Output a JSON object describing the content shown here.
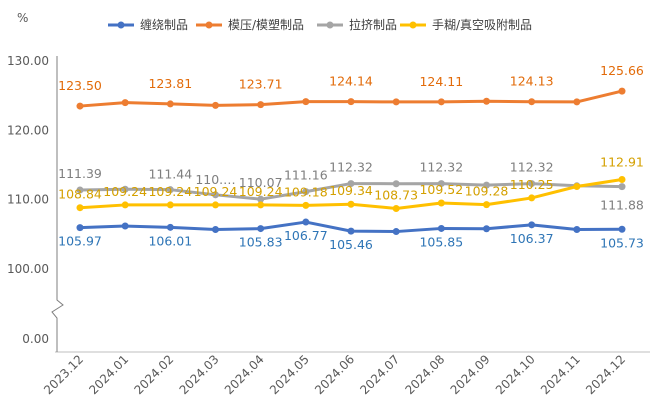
{
  "chart_data": {
    "type": "line",
    "y_unit": "%",
    "x": [
      "2023.12",
      "2024.01",
      "2024.02",
      "2024.03",
      "2024.04",
      "2024.05",
      "2024.06",
      "2024.07",
      "2024.08",
      "2024.09",
      "2024.10",
      "2024.11",
      "2024.12"
    ],
    "y_ticks": [
      "130.00",
      "120.00",
      "110.00",
      "100.00",
      "0.00"
    ],
    "ylim_upper_segment": [
      100,
      130
    ],
    "axis_break": true,
    "legend_position": "top",
    "grid": false,
    "series": [
      {
        "name": "缠绕制品",
        "color": "#4472C4",
        "label_color": "#2E75B6",
        "values": [
          105.97,
          106.2,
          106.01,
          105.7,
          105.83,
          106.77,
          105.46,
          105.4,
          105.85,
          105.8,
          106.37,
          105.7,
          105.73
        ],
        "labels": [
          "105.97",
          null,
          "106.01",
          null,
          "105.83",
          "106.77",
          "105.46",
          null,
          "105.85",
          null,
          "106.37",
          null,
          "105.73"
        ]
      },
      {
        "name": "模压/模塑制品",
        "color": "#ED7D31",
        "label_color": "#E26B0A",
        "values": [
          123.5,
          124.0,
          123.81,
          123.6,
          123.71,
          124.14,
          124.14,
          124.1,
          124.11,
          124.2,
          124.13,
          124.1,
          125.66
        ],
        "labels": [
          "123.50",
          null,
          "123.81",
          null,
          "123.71",
          null,
          "124.14",
          null,
          "124.11",
          null,
          "124.13",
          null,
          "125.66"
        ]
      },
      {
        "name": "拉挤制品",
        "color": "#A5A5A5",
        "label_color": "#7F7F7F",
        "values": [
          111.39,
          111.5,
          111.44,
          110.7,
          110.07,
          111.16,
          112.32,
          112.3,
          112.32,
          112.1,
          112.32,
          112.0,
          111.88
        ],
        "labels": [
          "111.39",
          null,
          "111.44",
          "110.…",
          "110.07",
          "111.16",
          "112.32",
          null,
          "112.32",
          null,
          "112.32",
          null,
          "111.88"
        ]
      },
      {
        "name": "手糊/真空吸附制品",
        "color": "#FFC000",
        "label_color": "#D4A000",
        "values": [
          108.84,
          109.24,
          109.24,
          109.24,
          109.24,
          109.18,
          109.34,
          108.73,
          109.52,
          109.28,
          110.25,
          111.9,
          112.91
        ],
        "labels": [
          "108.84",
          "109.24",
          "109.24",
          "109.24",
          "109.24",
          "109.18",
          "109.34",
          "108.73",
          "109.52",
          "109.28",
          "110.25",
          null,
          "112.91"
        ]
      }
    ]
  }
}
